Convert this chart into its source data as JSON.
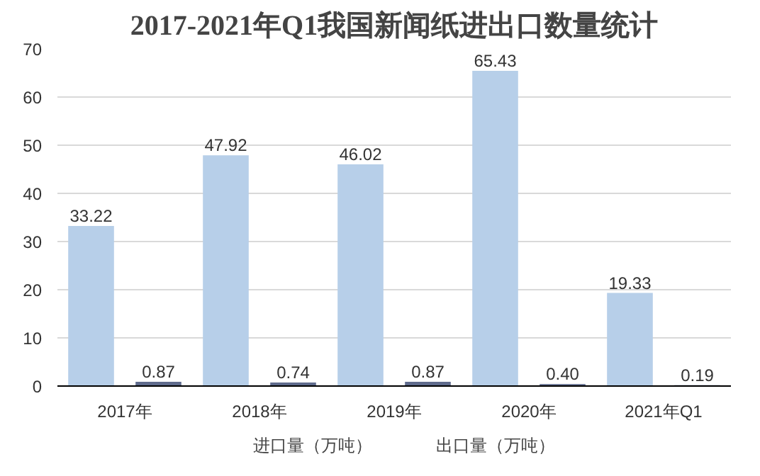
{
  "chart_data": {
    "type": "bar",
    "title": "2017-2021年Q1我国新闻纸进出口数量统计",
    "categories": [
      "2017年",
      "2018年",
      "2019年",
      "2020年",
      "2021年Q1"
    ],
    "series": [
      {
        "name": "进口量（万吨）",
        "color": "#b7cfe9",
        "values": [
          33.22,
          47.92,
          46.02,
          65.43,
          19.33
        ],
        "value_labels": [
          "33.22",
          "47.92",
          "46.02",
          "65.43",
          "19.33"
        ]
      },
      {
        "name": "出口量（万吨）",
        "color": "#5f6b8c",
        "values": [
          0.87,
          0.74,
          0.87,
          0.4,
          0.19
        ],
        "value_labels": [
          "0.87",
          "0.74",
          "0.87",
          "0.40",
          "0.19"
        ]
      }
    ],
    "ylim": [
      0,
      70
    ],
    "yticks": [
      0,
      10,
      20,
      30,
      40,
      50,
      60,
      70
    ],
    "grid": "y",
    "legend": "bottom"
  }
}
